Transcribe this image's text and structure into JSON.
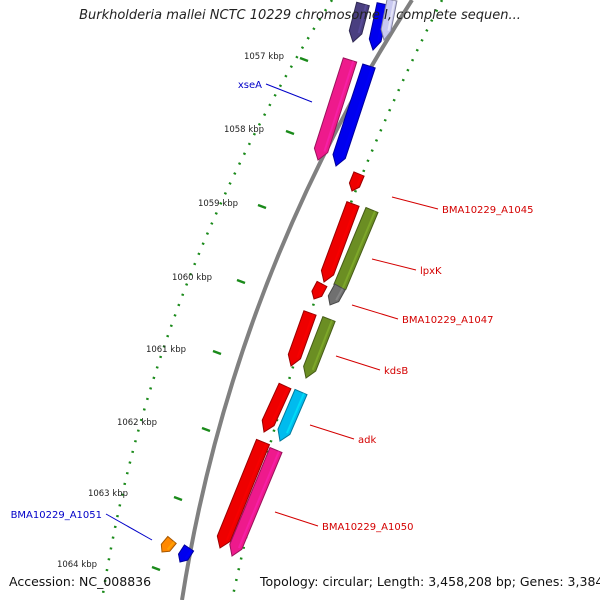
{
  "title": "Burkholderia mallei NCTC 10229 chromosome I, complete sequen...",
  "accession": "Accession: NC_008836",
  "topology": "Topology: circular; Length: 3,458,208 bp; Genes: 3,384",
  "colors": {
    "backbone": "#808080",
    "tick": "#1a8a1a",
    "label_red": "#d40000",
    "label_blue": "#0000c8"
  },
  "ticks": [
    "1057 kbp",
    "1058 kbp",
    "1059 kbp",
    "1060 kbp",
    "1061 kbp",
    "1062 kbp",
    "1063 kbp",
    "1064 kbp"
  ],
  "genes": [
    {
      "label": "",
      "color": "#4a3f80"
    },
    {
      "label": "",
      "color": "#0000ee"
    },
    {
      "label": "",
      "color": "#c8c8f0"
    },
    {
      "label": "xseA",
      "color": "#ee1a8c"
    },
    {
      "label": "",
      "color": "#0000ee"
    },
    {
      "label": "BMA10229_A1045",
      "color": "#ee0000"
    },
    {
      "label": "",
      "color": "#ee0000"
    },
    {
      "label": "lpxK",
      "color": "#6b8e23"
    },
    {
      "label": "",
      "color": "#ee0000"
    },
    {
      "label": "",
      "color": "#707070"
    },
    {
      "label": "BMA10229_A1047",
      "color": "#ee0000"
    },
    {
      "label": "kdsB",
      "color": "#6b8e23"
    },
    {
      "label": "",
      "color": "#ee0000"
    },
    {
      "label": "adk",
      "color": "#00bbee"
    },
    {
      "label": "BMA10229_A1050",
      "color": "#ee0000"
    },
    {
      "label": "",
      "color": "#ee1a8c"
    },
    {
      "label": "BMA10229_A1051",
      "color": "#ff8800"
    },
    {
      "label": "",
      "color": "#0000ee"
    }
  ]
}
